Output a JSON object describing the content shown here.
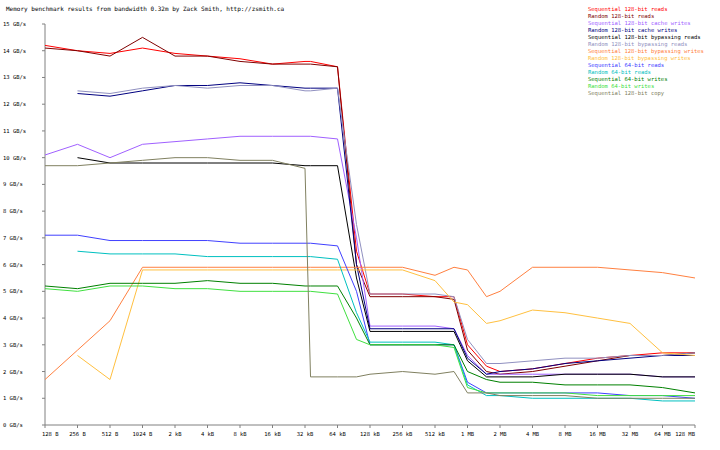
{
  "chart_data": {
    "type": "line",
    "title": "Memory benchmark results from bandwidth 0.32m by Zack Smith, http://zsmith.ca",
    "log": "x",
    "grid": false,
    "legend": "top-right",
    "xlim": [
      128,
      134217728
    ],
    "xticks": [
      {
        "value": 128,
        "label": "128 B"
      },
      {
        "value": 256,
        "label": "256 B"
      },
      {
        "value": 512,
        "label": "512 B"
      },
      {
        "value": 1024,
        "label": "1024 B"
      },
      {
        "value": 2048,
        "label": "2 kB"
      },
      {
        "value": 4096,
        "label": "4 kB"
      },
      {
        "value": 8192,
        "label": "8 kB"
      },
      {
        "value": 16384,
        "label": "16 kB"
      },
      {
        "value": 32768,
        "label": "32 kB"
      },
      {
        "value": 65536,
        "label": "64 kB"
      },
      {
        "value": 131072,
        "label": "128 kB"
      },
      {
        "value": 262144,
        "label": "256 kB"
      },
      {
        "value": 524288,
        "label": "512 kB"
      },
      {
        "value": 1048576,
        "label": "1 MB"
      },
      {
        "value": 2097152,
        "label": "2 MB"
      },
      {
        "value": 4194304,
        "label": "4 MB"
      },
      {
        "value": 8388608,
        "label": "8 MB"
      },
      {
        "value": 16777216,
        "label": "16 MB"
      },
      {
        "value": 33554432,
        "label": "32 MB"
      },
      {
        "value": 67108864,
        "label": "64 MB"
      },
      {
        "value": 134217728,
        "label": "128 MB"
      }
    ],
    "ylim": [
      0,
      15
    ],
    "yticks": [
      {
        "value": 0,
        "label": "0 GB/s"
      },
      {
        "value": 1,
        "label": "1 GB/s"
      },
      {
        "value": 2,
        "label": "2 GB/s"
      },
      {
        "value": 3,
        "label": "3 GB/s"
      },
      {
        "value": 4,
        "label": "4 GB/s"
      },
      {
        "value": 5,
        "label": "5 GB/s"
      },
      {
        "value": 6,
        "label": "6 GB/s"
      },
      {
        "value": 7,
        "label": "7 GB/s"
      },
      {
        "value": 8,
        "label": "8 GB/s"
      },
      {
        "value": 9,
        "label": "9 GB/s"
      },
      {
        "value": 10,
        "label": "10 GB/s"
      },
      {
        "value": 11,
        "label": "11 GB/s"
      },
      {
        "value": 12,
        "label": "12 GB/s"
      },
      {
        "value": 13,
        "label": "13 GB/s"
      },
      {
        "value": 14,
        "label": "14 GB/s"
      },
      {
        "value": 15,
        "label": "15 GB/s"
      }
    ],
    "x": [
      128,
      256,
      512,
      1024,
      2048,
      4096,
      8192,
      16384,
      32768,
      36864,
      65536,
      98304,
      131072,
      262144,
      524288,
      786432,
      1048576,
      1572864,
      2097152,
      4194304,
      8388608,
      16777216,
      33554432,
      67108864,
      134217728
    ],
    "series": [
      {
        "name": "Sequential 128-bit reads",
        "color": "#ff0000",
        "values": [
          14.2,
          14.0,
          13.9,
          14.1,
          13.9,
          13.8,
          13.7,
          13.5,
          13.6,
          13.6,
          13.4,
          6.5,
          4.9,
          4.9,
          4.8,
          4.8,
          3.0,
          2.2,
          2.0,
          2.1,
          2.3,
          2.5,
          2.6,
          2.7,
          2.7
        ]
      },
      {
        "name": "Random 128-bit reads",
        "color": "#800000",
        "values": [
          14.1,
          14.0,
          13.8,
          14.5,
          13.8,
          13.8,
          13.6,
          13.5,
          13.5,
          13.5,
          13.4,
          6.0,
          4.8,
          4.8,
          4.8,
          4.7,
          2.8,
          2.0,
          1.9,
          2.0,
          2.2,
          2.4,
          2.6,
          2.6,
          2.7
        ]
      },
      {
        "name": "Sequential 128-bit cache writes",
        "color": "#a060ff",
        "values": [
          10.1,
          10.5,
          10.0,
          10.5,
          10.6,
          10.7,
          10.8,
          10.8,
          10.8,
          10.8,
          10.7,
          7.0,
          3.7,
          3.7,
          3.7,
          3.6,
          2.6,
          1.9,
          1.9,
          1.9,
          1.9,
          1.9,
          1.9,
          1.8,
          1.8
        ]
      },
      {
        "name": "Random 128-bit cache writes",
        "color": "#000080",
        "values": [
          null,
          12.4,
          12.3,
          12.5,
          12.7,
          12.7,
          12.8,
          12.7,
          12.6,
          12.6,
          12.6,
          6.0,
          3.6,
          3.6,
          3.6,
          3.6,
          2.5,
          1.9,
          2.0,
          2.1,
          2.3,
          2.4,
          2.5,
          2.6,
          2.6
        ]
      },
      {
        "name": "Sequential 128-bit bypassing reads",
        "color": "#000000",
        "values": [
          null,
          10.0,
          9.8,
          9.8,
          9.8,
          9.8,
          9.8,
          9.8,
          9.7,
          9.7,
          9.7,
          5.5,
          3.5,
          3.5,
          3.5,
          3.5,
          2.4,
          1.8,
          1.8,
          1.8,
          1.9,
          1.9,
          1.9,
          1.8,
          1.8
        ]
      },
      {
        "name": "Random 128-bit bypassing reads",
        "color": "#9090c0",
        "values": [
          null,
          12.5,
          12.4,
          12.6,
          12.7,
          12.6,
          12.7,
          12.7,
          12.5,
          12.5,
          12.6,
          7.5,
          4.9,
          4.9,
          4.9,
          4.8,
          3.2,
          2.3,
          2.3,
          2.4,
          2.5,
          2.5,
          2.6,
          2.6,
          2.7
        ]
      },
      {
        "name": "Sequential 128-bit bypassing writes",
        "color": "#ff8040",
        "values": [
          1.7,
          2.8,
          3.9,
          5.9,
          5.9,
          5.9,
          5.9,
          5.9,
          5.9,
          5.9,
          5.9,
          5.9,
          5.9,
          5.9,
          5.6,
          5.9,
          5.8,
          4.8,
          5.0,
          5.9,
          5.9,
          5.9,
          5.8,
          5.7,
          5.5
        ]
      },
      {
        "name": "Random 128-bit bypassing writes",
        "color": "#ffc040",
        "values": [
          null,
          2.6,
          1.7,
          5.8,
          5.8,
          5.8,
          5.8,
          5.8,
          5.8,
          5.8,
          5.8,
          5.8,
          5.8,
          5.8,
          5.4,
          4.6,
          4.5,
          3.8,
          3.9,
          4.3,
          4.2,
          4.0,
          3.8,
          2.7,
          2.6
        ]
      },
      {
        "name": "Sequential 64-bit reads",
        "color": "#4040ff",
        "values": [
          7.1,
          7.1,
          6.9,
          6.9,
          6.9,
          6.9,
          6.8,
          6.8,
          6.8,
          6.8,
          6.7,
          5.0,
          3.0,
          3.0,
          3.0,
          3.0,
          1.6,
          1.2,
          1.2,
          1.2,
          1.2,
          1.2,
          1.1,
          1.1,
          1.0
        ]
      },
      {
        "name": "Random 64-bit reads",
        "color": "#00c0c0",
        "values": [
          null,
          6.5,
          6.4,
          6.4,
          6.4,
          6.3,
          6.3,
          6.3,
          6.3,
          6.3,
          6.2,
          4.2,
          3.1,
          3.1,
          3.1,
          3.0,
          1.5,
          1.1,
          1.1,
          1.0,
          1.0,
          1.0,
          1.0,
          0.9,
          0.9
        ]
      },
      {
        "name": "Sequential 64-bit writes",
        "color": "#008000",
        "values": [
          5.2,
          5.1,
          5.3,
          5.3,
          5.3,
          5.4,
          5.3,
          5.3,
          5.2,
          5.2,
          5.2,
          4.0,
          3.0,
          3.0,
          3.0,
          3.0,
          2.0,
          1.7,
          1.6,
          1.6,
          1.5,
          1.5,
          1.5,
          1.4,
          1.2
        ]
      },
      {
        "name": "Random 64-bit writes",
        "color": "#40e040",
        "values": [
          5.1,
          5.0,
          5.2,
          5.2,
          5.1,
          5.1,
          5.0,
          5.0,
          5.0,
          5.0,
          4.9,
          3.2,
          3.0,
          3.0,
          3.0,
          2.9,
          1.4,
          1.2,
          1.2,
          1.2,
          1.2,
          1.1,
          1.1,
          1.1,
          1.1
        ]
      },
      {
        "name": "Sequential 128-bit copy",
        "color": "#808060",
        "values": [
          9.7,
          9.7,
          9.8,
          9.9,
          10.0,
          10.0,
          9.9,
          9.9,
          9.6,
          1.8,
          1.8,
          1.8,
          1.9,
          2.0,
          1.9,
          2.0,
          1.2,
          1.2,
          1.1,
          1.1,
          1.1,
          1.0,
          1.0,
          1.0,
          1.0
        ]
      }
    ]
  }
}
